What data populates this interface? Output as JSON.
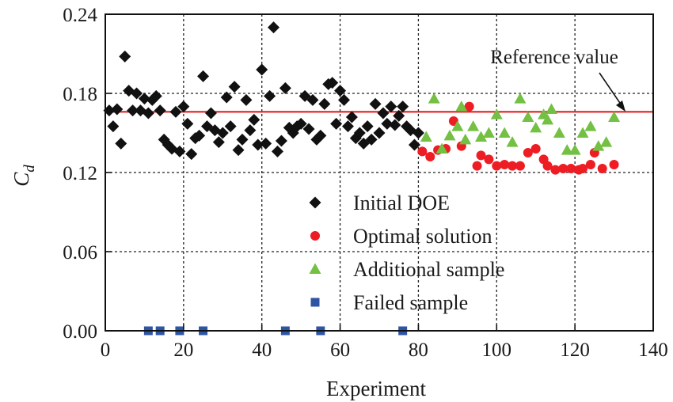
{
  "chart_data": {
    "type": "scatter",
    "title": "",
    "xlabel": "Experiment",
    "ylabel": "C",
    "ylabel_sub": "d",
    "xlim": [
      0,
      140
    ],
    "ylim": [
      0.0,
      0.24
    ],
    "xticks": [
      0,
      20,
      40,
      60,
      80,
      100,
      120,
      140
    ],
    "xtick_labels": [
      "0",
      "20",
      "40",
      "60",
      "80",
      "100",
      "120",
      "140"
    ],
    "yticks": [
      0.0,
      0.06,
      0.12,
      0.18,
      0.24
    ],
    "ytick_labels": [
      "0.00",
      "0.06",
      "0.12",
      "0.18",
      "0.24"
    ],
    "grid": "dashed at major ticks",
    "legend_position": "center-right",
    "reference_value": 0.166,
    "reference_label": "Reference value",
    "reference_color": "#e02020",
    "series": [
      {
        "name": "Initial DOE",
        "marker": "diamond",
        "color": "#111111",
        "points": [
          [
            1,
            0.167
          ],
          [
            2,
            0.155
          ],
          [
            3,
            0.168
          ],
          [
            4,
            0.142
          ],
          [
            5,
            0.208
          ],
          [
            6,
            0.182
          ],
          [
            7,
            0.167
          ],
          [
            8,
            0.18
          ],
          [
            9,
            0.167
          ],
          [
            10,
            0.176
          ],
          [
            11,
            0.165
          ],
          [
            12,
            0.175
          ],
          [
            13,
            0.178
          ],
          [
            14,
            0.167
          ],
          [
            15,
            0.145
          ],
          [
            16,
            0.141
          ],
          [
            17,
            0.138
          ],
          [
            18,
            0.166
          ],
          [
            19,
            0.136
          ],
          [
            20,
            0.17
          ],
          [
            21,
            0.157
          ],
          [
            22,
            0.134
          ],
          [
            23,
            0.146
          ],
          [
            24,
            0.148
          ],
          [
            25,
            0.193
          ],
          [
            26,
            0.155
          ],
          [
            27,
            0.165
          ],
          [
            28,
            0.152
          ],
          [
            29,
            0.143
          ],
          [
            30,
            0.15
          ],
          [
            31,
            0.177
          ],
          [
            32,
            0.155
          ],
          [
            33,
            0.185
          ],
          [
            34,
            0.137
          ],
          [
            35,
            0.145
          ],
          [
            36,
            0.175
          ],
          [
            37,
            0.152
          ],
          [
            38,
            0.16
          ],
          [
            39,
            0.141
          ],
          [
            40,
            0.198
          ],
          [
            41,
            0.142
          ],
          [
            42,
            0.178
          ],
          [
            43,
            0.23
          ],
          [
            44,
            0.136
          ],
          [
            45,
            0.144
          ],
          [
            46,
            0.184
          ],
          [
            47,
            0.154
          ],
          [
            48,
            0.15
          ],
          [
            49,
            0.155
          ],
          [
            50,
            0.157
          ],
          [
            51,
            0.178
          ],
          [
            52,
            0.153
          ],
          [
            53,
            0.175
          ],
          [
            54,
            0.145
          ],
          [
            55,
            0.148
          ],
          [
            56,
            0.172
          ],
          [
            57,
            0.187
          ],
          [
            58,
            0.188
          ],
          [
            59,
            0.157
          ],
          [
            60,
            0.182
          ],
          [
            61,
            0.175
          ],
          [
            62,
            0.155
          ],
          [
            63,
            0.162
          ],
          [
            64,
            0.146
          ],
          [
            65,
            0.15
          ],
          [
            66,
            0.142
          ],
          [
            67,
            0.155
          ],
          [
            68,
            0.145
          ],
          [
            69,
            0.172
          ],
          [
            70,
            0.15
          ],
          [
            71,
            0.165
          ],
          [
            72,
            0.157
          ],
          [
            73,
            0.17
          ],
          [
            74,
            0.156
          ],
          [
            75,
            0.163
          ],
          [
            76,
            0.17
          ],
          [
            77,
            0.155
          ],
          [
            78,
            0.152
          ],
          [
            79,
            0.141
          ],
          [
            80,
            0.15
          ]
        ]
      },
      {
        "name": "Optimal solution",
        "marker": "circle",
        "color": "#ee1d23",
        "points": [
          [
            81,
            0.136
          ],
          [
            83,
            0.132
          ],
          [
            85,
            0.137
          ],
          [
            87,
            0.138
          ],
          [
            89,
            0.159
          ],
          [
            91,
            0.14
          ],
          [
            93,
            0.17
          ],
          [
            95,
            0.125
          ],
          [
            96,
            0.133
          ],
          [
            98,
            0.13
          ],
          [
            100,
            0.125
          ],
          [
            102,
            0.126
          ],
          [
            104,
            0.125
          ],
          [
            106,
            0.125
          ],
          [
            108,
            0.135
          ],
          [
            110,
            0.138
          ],
          [
            112,
            0.13
          ],
          [
            113,
            0.125
          ],
          [
            115,
            0.122
          ],
          [
            117,
            0.123
          ],
          [
            119,
            0.123
          ],
          [
            121,
            0.122
          ],
          [
            122,
            0.123
          ],
          [
            124,
            0.126
          ],
          [
            125,
            0.135
          ],
          [
            127,
            0.123
          ],
          [
            130,
            0.126
          ]
        ]
      },
      {
        "name": "Additional sample",
        "marker": "triangle",
        "color": "#74c043",
        "points": [
          [
            82,
            0.147
          ],
          [
            84,
            0.176
          ],
          [
            86,
            0.138
          ],
          [
            88,
            0.148
          ],
          [
            90,
            0.155
          ],
          [
            91,
            0.17
          ],
          [
            92,
            0.145
          ],
          [
            94,
            0.155
          ],
          [
            96,
            0.147
          ],
          [
            98,
            0.15
          ],
          [
            100,
            0.164
          ],
          [
            102,
            0.15
          ],
          [
            104,
            0.143
          ],
          [
            106,
            0.176
          ],
          [
            108,
            0.162
          ],
          [
            110,
            0.154
          ],
          [
            112,
            0.164
          ],
          [
            113,
            0.16
          ],
          [
            114,
            0.168
          ],
          [
            116,
            0.15
          ],
          [
            118,
            0.137
          ],
          [
            120,
            0.137
          ],
          [
            122,
            0.15
          ],
          [
            124,
            0.155
          ],
          [
            126,
            0.14
          ],
          [
            128,
            0.143
          ],
          [
            130,
            0.162
          ]
        ]
      },
      {
        "name": "Failed sample",
        "marker": "square",
        "color": "#2e55a4",
        "points": [
          [
            11,
            0.0
          ],
          [
            14,
            0.0
          ],
          [
            19,
            0.0
          ],
          [
            25,
            0.0
          ],
          [
            46,
            0.0
          ],
          [
            55,
            0.0
          ],
          [
            76,
            0.0
          ]
        ]
      }
    ]
  }
}
